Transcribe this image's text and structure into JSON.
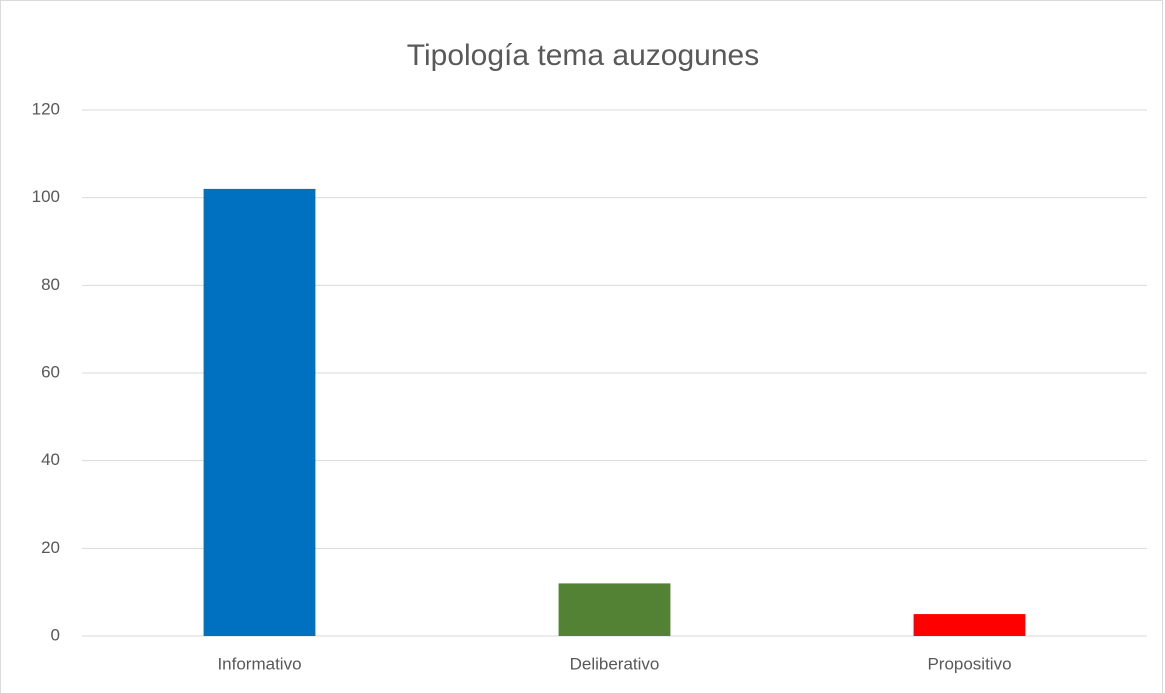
{
  "chart_data": {
    "type": "bar",
    "title": "Tipología tema auzogunes",
    "categories": [
      "Informativo",
      "Deliberativo",
      "Propositivo"
    ],
    "values": [
      102,
      12,
      5
    ],
    "colors": [
      "#0070c0",
      "#548235",
      "#ff0000"
    ],
    "ylim": [
      0,
      120
    ],
    "yticks": [
      0,
      20,
      40,
      60,
      80,
      100,
      120
    ],
    "grid": true
  }
}
